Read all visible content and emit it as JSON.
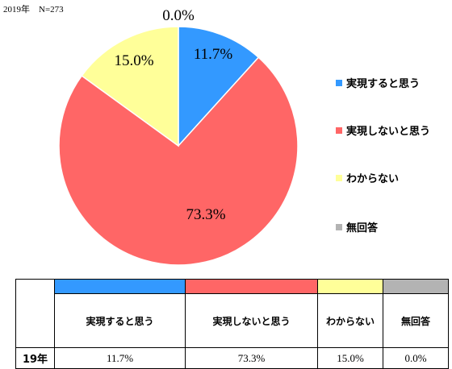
{
  "chart_data": {
    "type": "pie",
    "subtitle": "2019年　N=273",
    "categories": [
      "実現すると思う",
      "実現しないと思う",
      "わからない",
      "無回答"
    ],
    "values": [
      11.7,
      73.3,
      15.0,
      0.0
    ],
    "value_labels": [
      "11.7%",
      "73.3%",
      "15.0%",
      "0.0%"
    ],
    "colors": [
      "#3399ff",
      "#ff6666",
      "#ffff99",
      "#b3b3b3"
    ],
    "legend_position": "right"
  },
  "table": {
    "row_label": "19年",
    "headers": [
      "実現すると思う",
      "実現しないと思う",
      "わからない",
      "無回答"
    ],
    "values": [
      "11.7%",
      "73.3%",
      "15.0%",
      "0.0%"
    ]
  }
}
